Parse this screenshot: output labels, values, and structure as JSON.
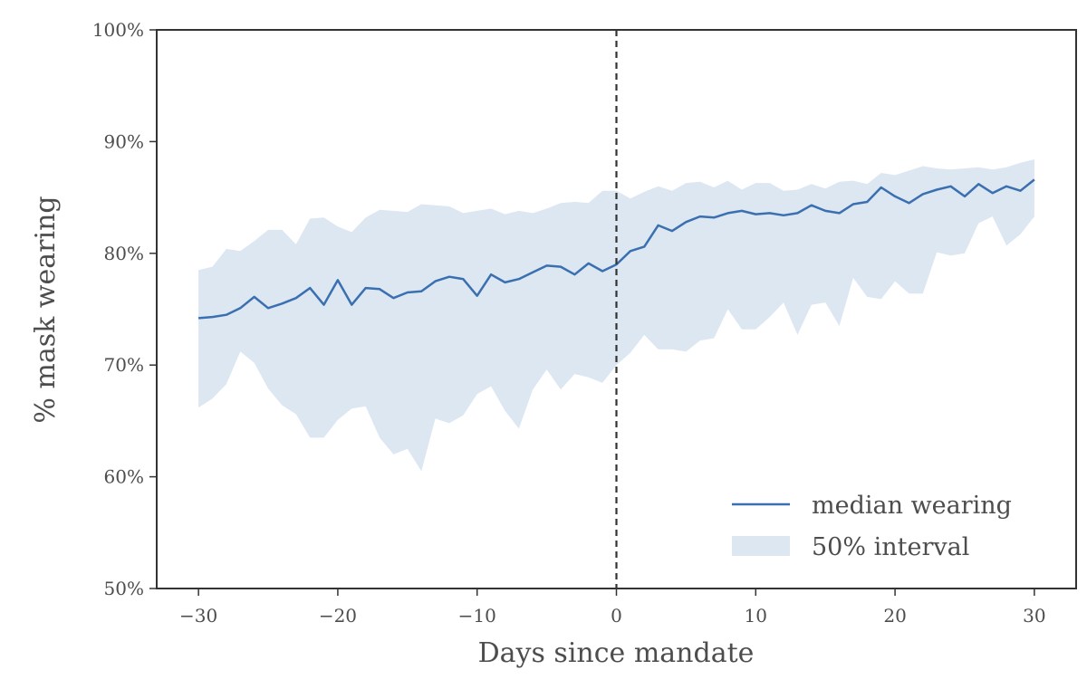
{
  "chart_data": {
    "type": "line",
    "xlabel": "Days since mandate",
    "ylabel": "% mask wearing",
    "xlim": [
      -33,
      33
    ],
    "ylim": [
      50,
      100
    ],
    "xticks": [
      -30,
      -20,
      -10,
      0,
      10,
      20,
      30
    ],
    "yticks": [
      50,
      60,
      70,
      80,
      90,
      100
    ],
    "xtick_labels": [
      "−30",
      "−20",
      "−10",
      "0",
      "10",
      "20",
      "30"
    ],
    "ytick_labels": [
      "50%",
      "60%",
      "70%",
      "80%",
      "90%",
      "100%"
    ],
    "vline_x": 0,
    "grid": false,
    "legend_position": "bottom-right",
    "x": [
      -30,
      -29,
      -28,
      -27,
      -26,
      -25,
      -24,
      -23,
      -22,
      -21,
      -20,
      -19,
      -18,
      -17,
      -16,
      -15,
      -14,
      -13,
      -12,
      -11,
      -10,
      -9,
      -8,
      -7,
      -6,
      -5,
      -4,
      -3,
      -2,
      -1,
      0,
      1,
      2,
      3,
      4,
      5,
      6,
      7,
      8,
      9,
      10,
      11,
      12,
      13,
      14,
      15,
      16,
      17,
      18,
      19,
      20,
      21,
      22,
      23,
      24,
      25,
      26,
      27,
      28,
      29,
      30
    ],
    "series": [
      {
        "name": "median wearing",
        "kind": "line",
        "color": "#3a6fb0",
        "values": [
          74.2,
          74.3,
          74.5,
          75.1,
          76.1,
          75.1,
          75.5,
          76.0,
          76.9,
          75.4,
          77.6,
          75.4,
          76.9,
          76.8,
          76.0,
          76.5,
          76.6,
          77.5,
          77.9,
          77.7,
          76.2,
          78.1,
          77.4,
          77.7,
          78.3,
          78.9,
          78.8,
          78.1,
          79.1,
          78.4,
          79.0,
          80.2,
          80.6,
          82.5,
          82.0,
          82.8,
          83.3,
          83.2,
          83.6,
          83.8,
          83.5,
          83.6,
          83.4,
          83.6,
          84.3,
          83.8,
          83.6,
          84.4,
          84.6,
          85.9,
          85.1,
          84.5,
          85.3,
          85.7,
          86.0,
          85.1,
          86.2,
          85.4,
          86.0,
          85.6,
          86.6
        ]
      },
      {
        "name": "50% interval",
        "kind": "band",
        "color": "#dce7f2",
        "upper": [
          78.5,
          78.8,
          80.4,
          80.2,
          81.1,
          82.1,
          82.1,
          80.8,
          83.1,
          83.2,
          82.4,
          81.9,
          83.2,
          83.9,
          83.8,
          83.7,
          84.4,
          84.3,
          84.2,
          83.6,
          83.8,
          84.0,
          83.5,
          83.8,
          83.6,
          84.0,
          84.5,
          84.6,
          84.5,
          85.6,
          85.6,
          84.9,
          85.5,
          86.0,
          85.6,
          86.3,
          86.4,
          85.9,
          86.5,
          85.7,
          86.3,
          86.3,
          85.6,
          85.7,
          86.2,
          85.8,
          86.4,
          86.5,
          86.2,
          87.2,
          87.0,
          87.4,
          87.8,
          87.6,
          87.5,
          87.6,
          87.7,
          87.5,
          87.7,
          88.1,
          88.4
        ],
        "lower": [
          66.2,
          67.0,
          68.3,
          71.2,
          70.2,
          67.9,
          66.4,
          65.6,
          63.5,
          63.5,
          65.1,
          66.1,
          66.3,
          63.5,
          62.0,
          62.5,
          60.5,
          65.2,
          64.8,
          65.5,
          67.4,
          68.1,
          65.9,
          64.3,
          67.8,
          69.6,
          67.8,
          69.2,
          68.9,
          68.4,
          70.0,
          71.1,
          72.7,
          71.4,
          71.4,
          71.2,
          72.2,
          72.4,
          75.0,
          73.2,
          73.2,
          74.3,
          75.6,
          72.7,
          75.4,
          75.6,
          73.5,
          77.8,
          76.1,
          75.9,
          77.5,
          76.4,
          76.4,
          80.1,
          79.8,
          80.0,
          82.7,
          83.3,
          80.7,
          81.7,
          83.3
        ]
      }
    ]
  }
}
